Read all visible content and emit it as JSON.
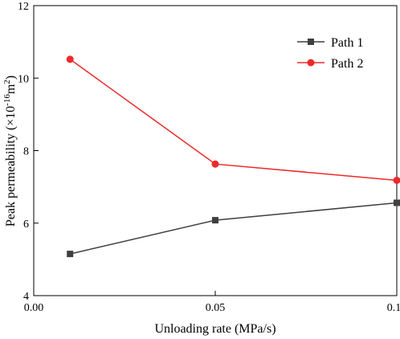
{
  "chart_data": {
    "type": "line",
    "xlabel": "Unloading rate (MPa/s)",
    "ylabel_main": "Peak permeability (×10",
    "ylabel_exp": "-16",
    "ylabel_unit": "m",
    "ylabel_exp2": "2",
    "ylabel_close": ")",
    "xlim": [
      0.0,
      0.1
    ],
    "ylim": [
      4,
      12
    ],
    "x_ticks": [
      0.0,
      0.05,
      0.1
    ],
    "x_tick_labels": [
      "0.00",
      "0.05",
      "0.10"
    ],
    "y_ticks": [
      4,
      6,
      8,
      10,
      12
    ],
    "y_tick_labels": [
      "4",
      "6",
      "8",
      "10",
      "12"
    ],
    "grid": false,
    "legend_position": "top-right",
    "series": [
      {
        "name": "Path 1",
        "color": "#3f3f3f",
        "marker": "square",
        "x": [
          0.01,
          0.05,
          0.1
        ],
        "y": [
          5.15,
          6.08,
          6.56
        ]
      },
      {
        "name": "Path 2",
        "color": "#ec2a2a",
        "marker": "circle",
        "x": [
          0.01,
          0.05,
          0.1
        ],
        "y": [
          10.52,
          7.63,
          7.18
        ]
      }
    ]
  }
}
